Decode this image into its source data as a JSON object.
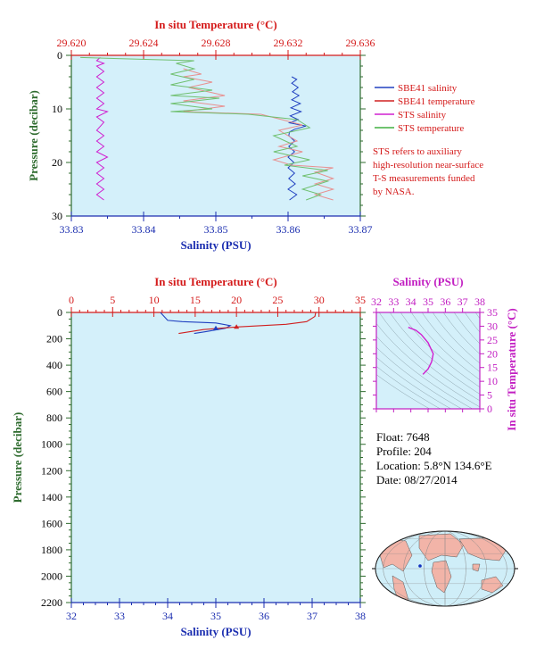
{
  "chart_data": [
    {
      "type": "line",
      "name": "upper-profile",
      "x_bottom": {
        "label": "Salinity (PSU)",
        "range": [
          33.83,
          33.87
        ],
        "ticks": [
          "33.83",
          "33.84",
          "33.85",
          "33.86",
          "33.87"
        ]
      },
      "x_top": {
        "label": "In situ Temperature (°C)",
        "range": [
          29.62,
          29.636
        ],
        "ticks": [
          "29.620",
          "29.624",
          "29.628",
          "29.632",
          "29.636"
        ]
      },
      "y": {
        "label": "Pressure (decibar)",
        "range": [
          0,
          30
        ],
        "ticks": [
          "0",
          "10",
          "20",
          "30"
        ],
        "inverted": true
      },
      "series": [
        {
          "name": "SBE41 salinity",
          "color": "#2040c0",
          "axis": "bottom",
          "points": [
            [
              33.8605,
              4
            ],
            [
              33.8612,
              4.5
            ],
            [
              33.8605,
              5.2
            ],
            [
              33.8614,
              6
            ],
            [
              33.8606,
              6.8
            ],
            [
              33.8615,
              7.5
            ],
            [
              33.8605,
              8.3
            ],
            [
              33.8617,
              9
            ],
            [
              33.8604,
              9.8
            ],
            [
              33.8618,
              10.5
            ],
            [
              33.8603,
              11.3
            ],
            [
              33.8614,
              12
            ],
            [
              33.8602,
              12.6
            ],
            [
              33.8625,
              13.2
            ],
            [
              33.8609,
              13.8
            ],
            [
              33.8602,
              14.3
            ],
            [
              33.8601,
              15
            ],
            [
              33.8609,
              16
            ],
            [
              33.8601,
              17
            ],
            [
              33.8609,
              18
            ],
            [
              33.86,
              19
            ],
            [
              33.8608,
              20
            ],
            [
              33.86,
              21
            ],
            [
              33.8609,
              22
            ],
            [
              33.8601,
              23
            ],
            [
              33.861,
              24
            ],
            [
              33.86,
              25
            ],
            [
              33.8612,
              26
            ],
            [
              33.8602,
              27
            ]
          ]
        },
        {
          "name": "SBE41 temperature",
          "color": "#d02020",
          "axis": "top",
          "points": [
            [
              29.6262,
              2.5
            ],
            [
              29.6272,
              3.5
            ],
            [
              29.6262,
              4
            ],
            [
              29.6278,
              5
            ],
            [
              29.6265,
              6
            ],
            [
              29.6285,
              7.5
            ],
            [
              29.6262,
              8.5
            ],
            [
              29.6285,
              9.5
            ],
            [
              29.6262,
              10.5
            ],
            [
              29.6305,
              11
            ],
            [
              29.6328,
              13
            ],
            [
              29.6315,
              14
            ],
            [
              29.6325,
              16
            ],
            [
              29.6315,
              17
            ],
            [
              29.6328,
              18
            ],
            [
              29.6312,
              19.5
            ],
            [
              29.6322,
              20.5
            ],
            [
              29.6345,
              21
            ],
            [
              29.6335,
              21.8
            ],
            [
              29.6345,
              23
            ],
            [
              29.6335,
              24
            ],
            [
              29.6345,
              25
            ],
            [
              29.6335,
              26
            ],
            [
              29.6345,
              27
            ]
          ]
        },
        {
          "name": "STS salinity",
          "color": "#d020d0",
          "axis": "bottom",
          "points": [
            [
              33.834,
              0.4
            ],
            [
              33.8335,
              1
            ],
            [
              33.8345,
              1.5
            ],
            [
              33.8335,
              2
            ],
            [
              33.8345,
              3
            ],
            [
              33.8335,
              4
            ],
            [
              33.8345,
              5
            ],
            [
              33.8335,
              6
            ],
            [
              33.8345,
              7
            ],
            [
              33.8335,
              8
            ],
            [
              33.8345,
              9
            ],
            [
              33.8335,
              10
            ],
            [
              33.835,
              10.5
            ],
            [
              33.8335,
              11.5
            ],
            [
              33.8345,
              12.5
            ],
            [
              33.8335,
              14
            ],
            [
              33.8345,
              15
            ],
            [
              33.8335,
              16
            ],
            [
              33.8345,
              17
            ],
            [
              33.8335,
              18
            ],
            [
              33.835,
              19
            ],
            [
              33.8335,
              20
            ],
            [
              33.8345,
              21
            ],
            [
              33.8335,
              22
            ],
            [
              33.8345,
              23
            ],
            [
              33.8335,
              24
            ],
            [
              33.8345,
              25
            ],
            [
              33.8335,
              26
            ],
            [
              33.8345,
              27
            ]
          ]
        },
        {
          "name": "STS temperature",
          "color": "#40b040",
          "axis": "top",
          "points": [
            [
              29.6205,
              0.4
            ],
            [
              29.6268,
              1
            ],
            [
              29.6258,
              1.5
            ],
            [
              29.6268,
              2.5
            ],
            [
              29.6255,
              3.5
            ],
            [
              29.6268,
              4.5
            ],
            [
              29.6255,
              5.5
            ],
            [
              29.6278,
              6.5
            ],
            [
              29.6255,
              7.5
            ],
            [
              29.6282,
              8
            ],
            [
              29.6255,
              9
            ],
            [
              29.6278,
              10
            ],
            [
              29.6255,
              10.5
            ],
            [
              29.6298,
              11
            ],
            [
              29.6325,
              12
            ],
            [
              29.6332,
              13.5
            ],
            [
              29.6312,
              15
            ],
            [
              29.6325,
              17
            ],
            [
              29.6312,
              18
            ],
            [
              29.6332,
              19.5
            ],
            [
              29.6318,
              20.5
            ],
            [
              29.6342,
              21.5
            ],
            [
              29.6328,
              22.5
            ],
            [
              29.6342,
              23.5
            ],
            [
              29.6328,
              25
            ],
            [
              29.6338,
              26
            ],
            [
              29.633,
              27
            ]
          ]
        }
      ],
      "legend": {
        "placement": "right",
        "entries": [
          "SBE41 salinity",
          "SBE41 temperature",
          "STS salinity",
          "STS temperature"
        ]
      },
      "note": [
        "STS refers to auxiliary",
        "high-resolution near-surface",
        "T-S measurements funded",
        "by NASA."
      ]
    },
    {
      "type": "line",
      "name": "full-profile",
      "x_bottom": {
        "label": "Salinity (PSU)",
        "range": [
          32,
          38
        ],
        "ticks": [
          "32",
          "33",
          "34",
          "35",
          "36",
          "37",
          "38"
        ]
      },
      "x_top": {
        "label": "In situ Temperature (°C)",
        "range": [
          0,
          35
        ],
        "ticks": [
          "0",
          "5",
          "10",
          "15",
          "20",
          "25",
          "30",
          "35"
        ]
      },
      "y": {
        "label": "Pressure (decibar)",
        "range": [
          0,
          2200
        ],
        "ticks": [
          "0",
          "200",
          "400",
          "600",
          "800",
          "1000",
          "1200",
          "1400",
          "1600",
          "1800",
          "2000",
          "2200"
        ],
        "inverted": true
      },
      "series": [
        {
          "name": "salinity",
          "color": "#2040c0",
          "axis": "bottom",
          "points": [
            [
              33.85,
              0
            ],
            [
              33.9,
              20
            ],
            [
              34.0,
              60
            ],
            [
              34.3,
              70
            ],
            [
              35.0,
              80
            ],
            [
              35.3,
              100
            ],
            [
              35.2,
              120
            ],
            [
              34.8,
              145
            ],
            [
              34.55,
              160
            ]
          ]
        },
        {
          "name": "temperature",
          "color": "#d02020",
          "axis": "top",
          "points": [
            [
              29.6,
              0
            ],
            [
              29.5,
              30
            ],
            [
              29.0,
              50
            ],
            [
              28.5,
              70
            ],
            [
              26,
              90
            ],
            [
              20,
              110
            ],
            [
              16,
              130
            ],
            [
              13,
              160
            ]
          ]
        }
      ],
      "markers": [
        {
          "series": "salinity",
          "x": 35.0,
          "y": 120
        },
        {
          "series": "temperature",
          "x": 20.0,
          "y": 110
        }
      ]
    },
    {
      "type": "scatter",
      "name": "ts-diagram",
      "x": {
        "label": "Salinity (PSU)",
        "range": [
          32,
          38
        ],
        "ticks": [
          "32",
          "33",
          "34",
          "35",
          "36",
          "37",
          "38"
        ]
      },
      "y": {
        "label": "In situ Temperature (°C)",
        "range": [
          0,
          35
        ],
        "ticks": [
          "0",
          "5",
          "10",
          "15",
          "20",
          "25",
          "30",
          "35"
        ]
      },
      "series": [
        {
          "name": "T-S",
          "color": "#d020d0",
          "points": [
            [
              33.85,
              29.6
            ],
            [
              34.3,
              28.5
            ],
            [
              34.6,
              27
            ],
            [
              35.0,
              24
            ],
            [
              35.3,
              20
            ],
            [
              35.2,
              17
            ],
            [
              35.0,
              14.5
            ],
            [
              34.7,
              12.5
            ]
          ]
        }
      ]
    }
  ],
  "info": {
    "float": "Float:  7648",
    "profile": "Profile:  204",
    "location": "Location:  5.8°N  134.6°E",
    "date": "Date:  08/27/2014"
  }
}
